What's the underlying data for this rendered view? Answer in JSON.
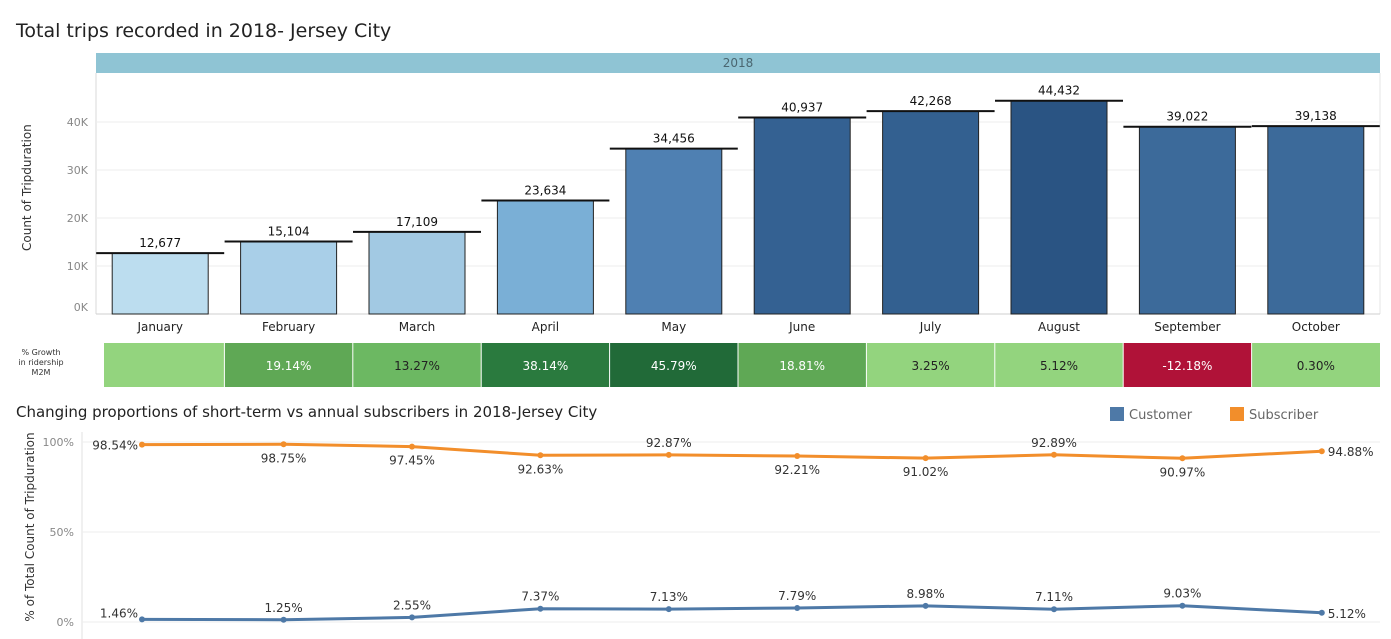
{
  "title": "Total trips recorded in 2018- Jersey City",
  "subtitle": "Changing proportions of short-term vs annual subscribers in 2018-Jersey City",
  "header": "2018",
  "growth_label": "% Growth in ridership M2M",
  "legend": [
    {
      "name": "Customer",
      "color": "#4e79a7"
    },
    {
      "name": "Subscriber",
      "color": "#f28e2b"
    }
  ],
  "chart_data": [
    {
      "type": "bar",
      "title": "Total trips recorded in 2018- Jersey City",
      "ylabel": "Count of Tripduration",
      "xlabel": "",
      "ylim": [
        0,
        48000
      ],
      "yticks": [
        0,
        10000,
        20000,
        30000,
        40000
      ],
      "ytick_labels": [
        "0K",
        "10K",
        "20K",
        "30K",
        "40K"
      ],
      "categories": [
        "January",
        "February",
        "March",
        "April",
        "May",
        "June",
        "July",
        "August",
        "September",
        "October"
      ],
      "values": [
        12677,
        15104,
        17109,
        23634,
        34456,
        40937,
        42268,
        44432,
        39022,
        39138
      ],
      "value_labels": [
        "12,677",
        "15,104",
        "17,109",
        "23,634",
        "34,456",
        "40,937",
        "42,268",
        "44,432",
        "39,022",
        "39,138"
      ],
      "colors": [
        "#bcddef",
        "#a9cfe8",
        "#a2c9e3",
        "#7aafd6",
        "#4f80b2",
        "#346192",
        "#336090",
        "#2a5483",
        "#3c6a9a",
        "#3c6a9a"
      ]
    },
    {
      "type": "table",
      "title": "% Growth in ridership M2M",
      "categories": [
        "January",
        "February",
        "March",
        "April",
        "May",
        "June",
        "July",
        "August",
        "September",
        "October"
      ],
      "values": [
        "",
        "19.14%",
        "13.27%",
        "38.14%",
        "45.79%",
        "18.81%",
        "3.25%",
        "5.12%",
        "-12.18%",
        "0.30%"
      ],
      "colors": [
        "#93d47e",
        "#5fa855",
        "#6cb862",
        "#2a7a3e",
        "#216a38",
        "#5fa855",
        "#93d47e",
        "#93d47e",
        "#b01238",
        "#93d47e"
      ],
      "text_colors": [
        "#222",
        "#ffffff",
        "#222",
        "#ffffff",
        "#ffffff",
        "#ffffff",
        "#222",
        "#222",
        "#ffffff",
        "#222"
      ]
    },
    {
      "type": "line",
      "title": "Changing proportions of short-term vs annual subscribers in 2018-Jersey City",
      "ylabel": "% of Total Count of Tripduration",
      "ylim": [
        0,
        100
      ],
      "yticks": [
        0,
        50,
        100
      ],
      "ytick_labels": [
        "0%",
        "50%",
        "100%"
      ],
      "x": [
        "January",
        "February",
        "March",
        "April",
        "May",
        "June",
        "July",
        "August",
        "September",
        "October"
      ],
      "series": [
        {
          "name": "Subscriber",
          "color": "#f28e2b",
          "values": [
            98.54,
            98.75,
            97.45,
            92.63,
            92.87,
            92.21,
            91.02,
            92.89,
            90.97,
            94.88
          ],
          "labels": [
            "98.54%",
            "98.75%",
            "97.45%",
            "92.63%",
            "92.87%",
            "92.21%",
            "91.02%",
            "92.89%",
            "90.97%",
            "94.88%"
          ]
        },
        {
          "name": "Customer",
          "color": "#4e79a7",
          "values": [
            1.46,
            1.25,
            2.55,
            7.37,
            7.13,
            7.79,
            8.98,
            7.11,
            9.03,
            5.12
          ],
          "labels": [
            "1.46%",
            "1.25%",
            "2.55%",
            "7.37%",
            "7.13%",
            "7.79%",
            "8.98%",
            "7.11%",
            "9.03%",
            "5.12%"
          ]
        }
      ]
    }
  ]
}
